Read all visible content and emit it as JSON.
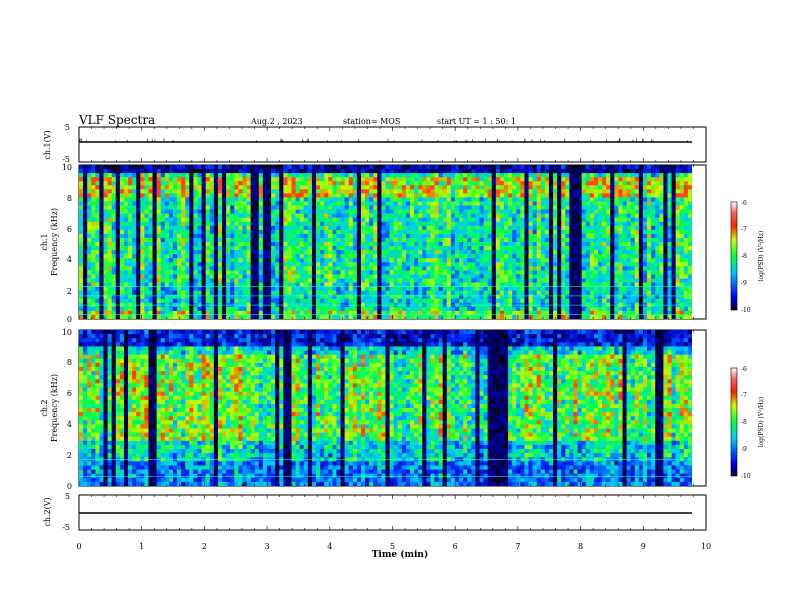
{
  "header": {
    "title": "VLF Spectra",
    "date": "Aug.2 , 2023",
    "station": "station= MOS",
    "start": "start UT = 1 : 50: 1"
  },
  "chart_data": [
    {
      "type": "line",
      "panel": "ch1-waveform",
      "ylabel": "ch.1(V)",
      "ylim": [
        -5,
        5
      ],
      "yticks": [
        "5",
        "-5"
      ],
      "xlim": [
        0,
        10
      ],
      "series": [
        {
          "values_approx": -1.5
        }
      ]
    },
    {
      "type": "heatmap",
      "panel": "ch1-spectrogram",
      "ylabel_top": "ch.1",
      "ylabel": "Frequency (kHz)",
      "ylim": [
        0,
        10
      ],
      "yticks": [
        "10",
        "8",
        "6",
        "4",
        "2",
        "0"
      ],
      "xlim": [
        0,
        9.85
      ],
      "colorbar": {
        "label": "log(PSD) (V²/Hz)",
        "range": [
          -10,
          -6
        ],
        "ticks": [
          "-6",
          "-7",
          "-8",
          "-9",
          "-10"
        ]
      }
    },
    {
      "type": "heatmap",
      "panel": "ch2-spectrogram",
      "ylabel_top": "ch.2",
      "ylabel": "Frequency (kHz)",
      "ylim": [
        0,
        10
      ],
      "yticks": [
        "10",
        "8",
        "6",
        "4",
        "2",
        "0"
      ],
      "xlim": [
        0,
        9.85
      ],
      "colorbar": {
        "label": "log(PSD) (V²/Hz)",
        "range": [
          -10,
          -6
        ],
        "ticks": [
          "-6",
          "-7",
          "-8",
          "-9",
          "-10"
        ]
      }
    },
    {
      "type": "line",
      "panel": "ch2-waveform",
      "ylabel": "ch.2(V)",
      "ylim": [
        -5,
        5
      ],
      "yticks": [
        "5",
        "-5"
      ],
      "xlim": [
        0,
        10
      ],
      "series": [
        {
          "values_approx": -1.5
        }
      ]
    }
  ],
  "xaxis": {
    "label": "Time (min)",
    "range": [
      0,
      10
    ],
    "ticks": [
      "0",
      "1",
      "2",
      "3",
      "4",
      "5",
      "6",
      "7",
      "8",
      "9",
      "10"
    ]
  },
  "colors": {
    "colormap": [
      "#000000",
      "#0000ff",
      "#00e0ff",
      "#00ff40",
      "#ffff00",
      "#ff0000",
      "#ffffff"
    ],
    "axis": "#000000"
  }
}
